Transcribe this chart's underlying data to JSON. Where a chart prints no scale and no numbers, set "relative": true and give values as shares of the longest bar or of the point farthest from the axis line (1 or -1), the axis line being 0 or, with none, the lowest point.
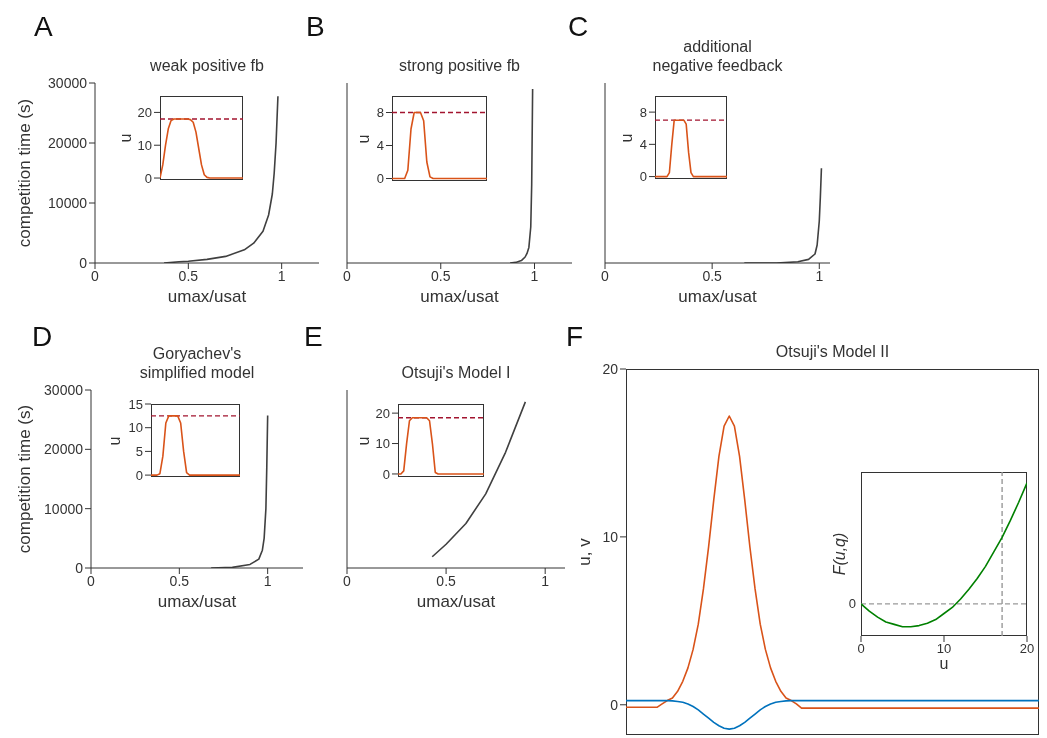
{
  "chart_data": [
    {
      "type": "line",
      "title": "weak positive fb",
      "xlabel": "umax/usat",
      "ylabel": "competition time (s)",
      "annotations": [
        "A"
      ],
      "x": [
        0.37,
        0.45,
        0.5,
        0.6,
        0.7,
        0.8,
        0.85,
        0.9,
        0.93,
        0.95,
        0.96,
        0.97,
        0.98
      ],
      "values": [
        0,
        200,
        300,
        600,
        1100,
        2200,
        3300,
        5300,
        8000,
        11500,
        15000,
        20000,
        27800
      ],
      "color": "#404040",
      "xlim": [
        0,
        1.2
      ],
      "xticks": [
        0,
        0.5,
        1
      ],
      "ylim": [
        0,
        30000
      ],
      "yticks": [
        0,
        10000,
        20000,
        30000
      ]
    },
    {
      "type": "line",
      "ylabel": "u",
      "categories": [
        null,
        null,
        null,
        null,
        null,
        null,
        null,
        null,
        null,
        null,
        null,
        null,
        null,
        null,
        null,
        null,
        null,
        null,
        null,
        null,
        null,
        null,
        null,
        null,
        null,
        null,
        null,
        null,
        null,
        null,
        null
      ],
      "values": [
        0,
        4,
        10,
        15,
        17.5,
        18,
        18,
        18,
        18,
        18,
        18,
        17.8,
        17,
        14,
        9,
        4,
        1,
        0.2,
        0,
        0,
        0,
        0,
        0,
        0,
        0,
        0,
        0,
        0,
        0,
        0,
        0
      ],
      "color": "#d95319",
      "ylim": [
        -0.6,
        25
      ],
      "yticks": [
        0,
        10,
        20
      ],
      "tick_labels": "y",
      "ref_lines": [
        {
          "axis": "y",
          "value": 18,
          "color": "#a2142f",
          "line_style": "dashed"
        }
      ]
    },
    {
      "type": "line",
      "title": "strong positive fb",
      "xlabel": "umax/usat",
      "annotations": [
        "B"
      ],
      "x": [
        0.87,
        0.9,
        0.93,
        0.95,
        0.96,
        0.97,
        0.98,
        0.985,
        0.99
      ],
      "values": [
        0,
        100,
        400,
        1000,
        1600,
        2600,
        6000,
        13000,
        29000
      ],
      "color": "#404040",
      "xlim": [
        0,
        1.2
      ],
      "xticks": [
        0,
        0.5,
        1
      ],
      "ylim": [
        0,
        30000
      ],
      "yticks": [
        0,
        10000,
        20000,
        30000
      ],
      "tick_labels": "x"
    },
    {
      "type": "line",
      "ylabel": "u",
      "categories": [
        null,
        null,
        null,
        null,
        null,
        null,
        null,
        null,
        null,
        null,
        null,
        null,
        null,
        null,
        null,
        null,
        null,
        null,
        null,
        null,
        null,
        null,
        null,
        null,
        null,
        null,
        null,
        null,
        null,
        null,
        null
      ],
      "values": [
        0,
        0,
        0,
        0,
        0,
        1,
        6,
        8,
        8,
        8,
        7,
        2,
        0.2,
        0,
        0,
        0,
        0,
        0,
        0,
        0,
        0,
        0,
        0,
        0,
        0,
        0,
        0,
        0,
        0,
        0,
        0
      ],
      "color": "#d95319",
      "ylim": [
        -0.3,
        10
      ],
      "yticks": [
        0,
        4,
        8
      ],
      "tick_labels": "y",
      "ref_lines": [
        {
          "axis": "y",
          "value": 8,
          "color": "#a2142f",
          "line_style": "dashed"
        }
      ]
    },
    {
      "type": "line",
      "title": "additional\nnegative feedback",
      "xlabel": "umax/usat",
      "annotations": [
        "C"
      ],
      "x": [
        0.65,
        0.8,
        0.9,
        0.95,
        0.98,
        0.99,
        1.0,
        1.005,
        1.01
      ],
      "values": [
        0,
        0,
        200,
        600,
        1500,
        3000,
        7000,
        11000,
        15800
      ],
      "color": "#404040",
      "xlim": [
        0,
        1.05
      ],
      "xticks": [
        0,
        0.5,
        1
      ],
      "ylim": [
        0,
        30000
      ],
      "yticks": [
        0,
        10000,
        20000,
        30000
      ],
      "tick_labels": "x"
    },
    {
      "type": "line",
      "ylabel": "u",
      "categories": [
        null,
        null,
        null,
        null,
        null,
        null,
        null,
        null,
        null,
        null,
        null,
        null,
        null,
        null,
        null,
        null,
        null,
        null,
        null,
        null,
        null,
        null,
        null,
        null,
        null,
        null,
        null,
        null,
        null,
        null,
        null
      ],
      "values": [
        0,
        0,
        0,
        0,
        0,
        0,
        0.5,
        4,
        7,
        7,
        7,
        7,
        7,
        6.5,
        3,
        0.5,
        0,
        0,
        0,
        0,
        0,
        0,
        0,
        0,
        0,
        0,
        0,
        0,
        0,
        0,
        0
      ],
      "color": "#d95319",
      "ylim": [
        -0.3,
        10
      ],
      "yticks": [
        0,
        4,
        8
      ],
      "tick_labels": "y",
      "ref_lines": [
        {
          "axis": "y",
          "value": 7,
          "color": "#a2142f",
          "line_style": "dashed"
        }
      ]
    },
    {
      "type": "line",
      "title": "Goryachev's\nsimplified model",
      "xlabel": "umax/usat",
      "ylabel": "competition time (s)",
      "annotations": [
        "D"
      ],
      "x": [
        0.68,
        0.8,
        0.9,
        0.95,
        0.97,
        0.98,
        0.99,
        0.995,
        1.0
      ],
      "values": [
        0,
        100,
        600,
        1500,
        3000,
        5000,
        10000,
        17000,
        25700
      ],
      "color": "#404040",
      "xlim": [
        0,
        1.2
      ],
      "xticks": [
        0,
        0.5,
        1
      ],
      "ylim": [
        0,
        30000
      ],
      "yticks": [
        0,
        10000,
        20000,
        30000
      ]
    },
    {
      "type": "line",
      "ylabel": "u",
      "categories": [
        null,
        null,
        null,
        null,
        null,
        null,
        null,
        null,
        null,
        null,
        null,
        null,
        null,
        null,
        null,
        null,
        null,
        null,
        null,
        null,
        null,
        null,
        null,
        null,
        null,
        null,
        null,
        null,
        null,
        null,
        null
      ],
      "values": [
        0,
        0,
        0,
        0.3,
        4,
        11,
        12.5,
        12.5,
        12.5,
        12.5,
        11,
        5,
        0.5,
        0,
        0,
        0,
        0,
        0,
        0,
        0,
        0,
        0,
        0,
        0,
        0,
        0,
        0,
        0,
        0,
        0,
        0
      ],
      "color": "#d95319",
      "ylim": [
        -0.4,
        15
      ],
      "yticks": [
        0,
        5,
        10,
        15
      ],
      "tick_labels": "y",
      "ref_lines": [
        {
          "axis": "y",
          "value": 12.5,
          "color": "#a2142f",
          "line_style": "dashed"
        }
      ]
    },
    {
      "type": "line",
      "title": "Otsuji's Model I",
      "xlabel": "umax/usat",
      "annotations": [
        "E"
      ],
      "x": [
        0.43,
        0.5,
        0.6,
        0.7,
        0.8,
        0.9
      ],
      "values": [
        1900,
        4000,
        7500,
        12500,
        19500,
        28000
      ],
      "color": "#404040",
      "xlim": [
        0,
        1.1
      ],
      "xticks": [
        0,
        0.5,
        1
      ],
      "ylim": [
        0,
        30000
      ],
      "yticks": [
        0,
        10000,
        20000,
        30000
      ],
      "tick_labels": "x"
    },
    {
      "type": "line",
      "ylabel": "u",
      "categories": [
        null,
        null,
        null,
        null,
        null,
        null,
        null,
        null,
        null,
        null,
        null,
        null,
        null,
        null,
        null,
        null,
        null,
        null,
        null,
        null,
        null,
        null,
        null,
        null,
        null,
        null,
        null,
        null,
        null,
        null,
        null
      ],
      "values": [
        0,
        0,
        1,
        10,
        17.5,
        18.5,
        18.5,
        18.5,
        18.5,
        18.5,
        18.5,
        17.5,
        10,
        0.5,
        0,
        0,
        0,
        0,
        0,
        0,
        0,
        0,
        0,
        0,
        0,
        0,
        0,
        0,
        0,
        0,
        0
      ],
      "color": "#d95319",
      "ylim": [
        -1,
        23
      ],
      "yticks": [
        0,
        10,
        20
      ],
      "tick_labels": "y",
      "ref_lines": [
        {
          "axis": "y",
          "value": 18.5,
          "color": "#a2142f",
          "line_style": "dashed"
        }
      ]
    },
    {
      "type": "line",
      "title": "Otsuji's Model II",
      "ylabel": "u, v",
      "annotations": [
        "F"
      ],
      "categories": [
        null,
        null,
        null,
        null,
        null,
        null,
        null,
        null,
        null,
        null,
        null,
        null,
        null,
        null,
        null,
        null,
        null,
        null,
        null,
        null,
        null,
        null,
        null,
        null,
        null,
        null,
        null,
        null,
        null,
        null,
        null,
        null,
        null,
        null,
        null,
        null,
        null,
        null,
        null,
        null,
        null,
        null,
        null,
        null,
        null,
        null,
        null,
        null,
        null,
        null,
        null,
        null,
        null,
        null,
        null,
        null,
        null,
        null,
        null,
        null,
        null,
        null,
        null,
        null,
        null,
        null,
        null,
        null,
        null,
        null,
        null,
        null,
        null,
        null,
        null,
        null,
        null,
        null,
        null,
        null,
        null
      ],
      "ylim": [
        -1.8,
        20
      ],
      "yticks": [
        0,
        10,
        20
      ],
      "tick_labels": "y",
      "series": [
        {
          "color": "#d95319",
          "values": [
            -0.15,
            -0.15,
            -0.15,
            -0.15,
            -0.15,
            -0.15,
            -0.15,
            0.05,
            0.25,
            0.4,
            0.8,
            1.4,
            2.2,
            3.3,
            4.8,
            6.9,
            9.4,
            12.2,
            14.8,
            16.6,
            17.2,
            16.6,
            14.8,
            12.2,
            9.4,
            6.9,
            4.8,
            3.3,
            2.2,
            1.4,
            0.8,
            0.4,
            0.25,
            0.05,
            -0.2,
            -0.2,
            -0.2,
            -0.2,
            -0.2,
            -0.2,
            -0.2,
            -0.2,
            -0.2,
            -0.2,
            -0.2,
            -0.2,
            -0.2,
            -0.2,
            -0.2,
            -0.2,
            -0.2,
            -0.2,
            -0.2,
            -0.2,
            -0.2,
            -0.2,
            -0.2,
            -0.2,
            -0.2,
            -0.2,
            -0.2,
            -0.2,
            -0.2,
            -0.2,
            -0.2,
            -0.2,
            -0.2,
            -0.2,
            -0.2,
            -0.2,
            -0.2,
            -0.2,
            -0.2,
            -0.2,
            -0.2,
            -0.2,
            -0.2,
            -0.2,
            -0.2,
            -0.2,
            -0.2
          ]
        },
        {
          "color": "#0072bd",
          "values": [
            0.25,
            0.25,
            0.25,
            0.25,
            0.25,
            0.25,
            0.25,
            0.25,
            0.25,
            0.23,
            0.2,
            0.15,
            0.05,
            -0.1,
            -0.3,
            -0.55,
            -0.8,
            -1.05,
            -1.25,
            -1.4,
            -1.45,
            -1.4,
            -1.25,
            -1.05,
            -0.8,
            -0.55,
            -0.3,
            -0.1,
            0.05,
            0.15,
            0.2,
            0.23,
            0.25,
            0.25,
            0.25,
            0.25,
            0.25,
            0.25,
            0.25,
            0.25,
            0.25,
            0.25,
            0.25,
            0.25,
            0.25,
            0.25,
            0.25,
            0.25,
            0.25,
            0.25,
            0.25,
            0.25,
            0.25,
            0.25,
            0.25,
            0.25,
            0.25,
            0.25,
            0.25,
            0.25,
            0.25,
            0.25,
            0.25,
            0.25,
            0.25,
            0.25,
            0.25,
            0.25,
            0.25,
            0.25,
            0.25,
            0.25,
            0.25,
            0.25,
            0.25,
            0.25,
            0.25,
            0.25,
            0.25,
            0.25,
            0.25
          ]
        }
      ]
    },
    {
      "type": "line",
      "xlabel": "u",
      "ylabel": "F(u,q)",
      "x": [
        0,
        1,
        2,
        3,
        4,
        5,
        6,
        7,
        8,
        9,
        10,
        11,
        12,
        13,
        14,
        15,
        16,
        17,
        18,
        19,
        20
      ],
      "values": [
        0,
        -0.06,
        -0.11,
        -0.15,
        -0.17,
        -0.19,
        -0.19,
        -0.18,
        -0.16,
        -0.13,
        -0.08,
        -0.03,
        0.04,
        0.12,
        0.21,
        0.31,
        0.43,
        0.55,
        0.69,
        0.84,
        1
      ],
      "color": "#008000",
      "relative": true,
      "xlim": [
        0,
        20
      ],
      "xticks": [
        0,
        10,
        20
      ],
      "ref_lines": [
        {
          "axis": "y",
          "value": 0,
          "label": "0",
          "color": "#999999",
          "line_style": "dashed"
        },
        {
          "axis": "x",
          "value": 17,
          "color": "#999999",
          "line_style": "dashed"
        }
      ]
    }
  ]
}
